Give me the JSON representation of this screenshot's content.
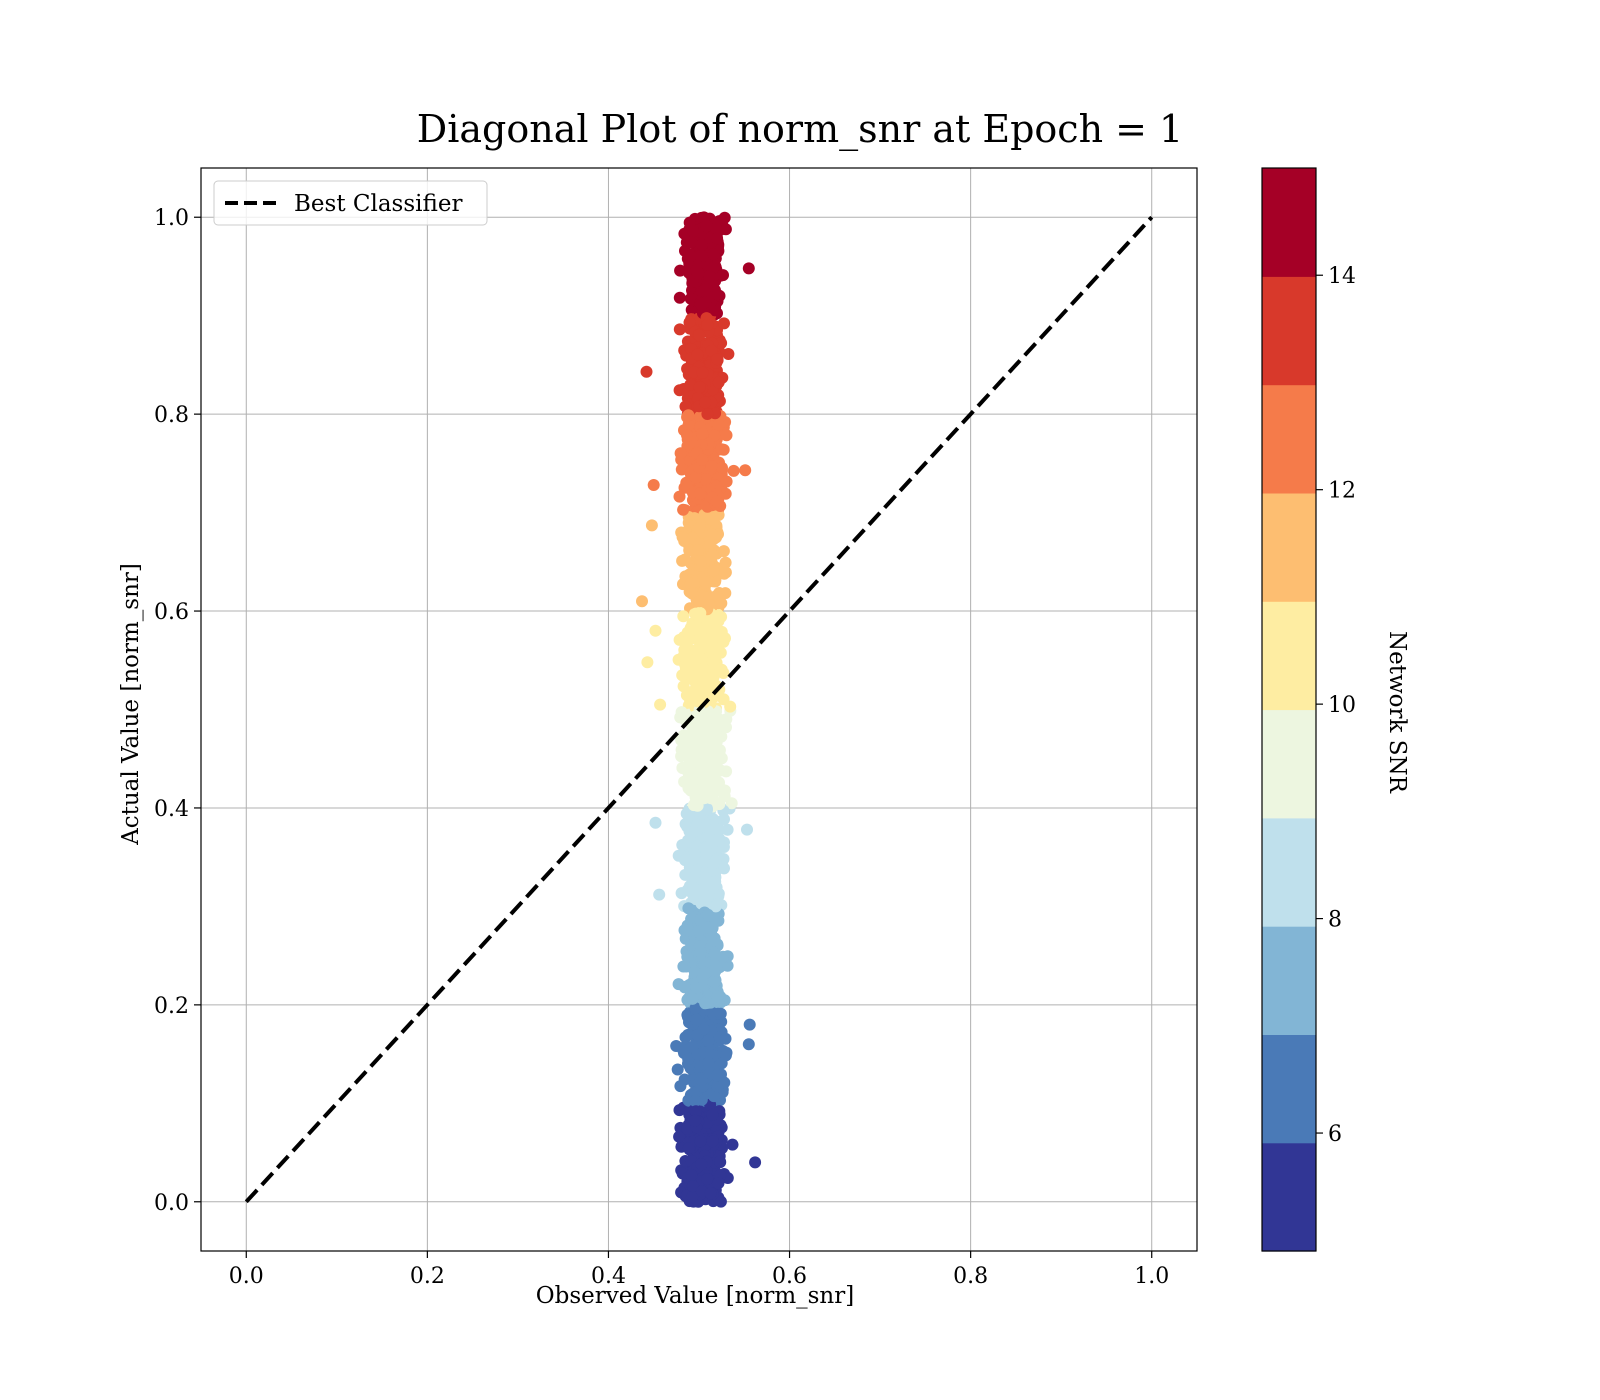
{
  "chart_data": {
    "type": "scatter",
    "title": "Diagonal Plot of norm_snr at Epoch = 1",
    "xlabel": "Observed Value [norm_snr]",
    "ylabel": "Actual Value [norm_snr]",
    "xlim": [
      -0.05,
      1.05
    ],
    "ylim": [
      -0.05,
      1.05
    ],
    "xticks": [
      0.0,
      0.2,
      0.4,
      0.6,
      0.8,
      1.0
    ],
    "yticks": [
      0.0,
      0.2,
      0.4,
      0.6,
      0.8,
      1.0
    ],
    "xtick_labels": [
      "0.0",
      "0.2",
      "0.4",
      "0.6",
      "0.8",
      "1.0"
    ],
    "ytick_labels": [
      "0.0",
      "0.2",
      "0.4",
      "0.6",
      "0.8",
      "1.0"
    ],
    "grid": true,
    "legend": {
      "placement": "upper-left",
      "entries": [
        {
          "label": "Best Classifier",
          "style": "dashed",
          "color": "#000000"
        }
      ]
    },
    "reference_line": {
      "name": "Best Classifier",
      "x": [
        0.0,
        1.0
      ],
      "y": [
        0.0,
        1.0
      ],
      "style": "dashed"
    },
    "point_cloud": {
      "x_center": 0.505,
      "x_spread": 0.035,
      "y_range": [
        0.0,
        1.0
      ],
      "bands": [
        {
          "y_range": [
            0.0,
            0.1
          ],
          "color": "#313695"
        },
        {
          "y_range": [
            0.1,
            0.2
          ],
          "color": "#4a7ab7"
        },
        {
          "y_range": [
            0.2,
            0.3
          ],
          "color": "#82b5d5"
        },
        {
          "y_range": [
            0.3,
            0.4
          ],
          "color": "#bfe0ec"
        },
        {
          "y_range": [
            0.4,
            0.5
          ],
          "color": "#edf6e0"
        },
        {
          "y_range": [
            0.5,
            0.6
          ],
          "color": "#feeda2"
        },
        {
          "y_range": [
            0.6,
            0.7
          ],
          "color": "#fdbe71"
        },
        {
          "y_range": [
            0.7,
            0.8
          ],
          "color": "#f57b4a"
        },
        {
          "y_range": [
            0.8,
            0.9
          ],
          "color": "#d8392b"
        },
        {
          "y_range": [
            0.9,
            1.0
          ],
          "color": "#a50026"
        }
      ],
      "outliers": [
        [
          0.437,
          0.61
        ],
        [
          0.443,
          0.548
        ],
        [
          0.452,
          0.58
        ],
        [
          0.457,
          0.505
        ],
        [
          0.452,
          0.385
        ],
        [
          0.456,
          0.312
        ],
        [
          0.562,
          0.04
        ],
        [
          0.555,
          0.16
        ],
        [
          0.556,
          0.18
        ],
        [
          0.553,
          0.378
        ],
        [
          0.551,
          0.743
        ],
        [
          0.555,
          0.948
        ],
        [
          0.442,
          0.843
        ],
        [
          0.45,
          0.728
        ],
        [
          0.448,
          0.687
        ]
      ]
    },
    "colorbar": {
      "label": "Network SNR",
      "range": [
        4.9,
        15.0
      ],
      "ticks": [
        6,
        8,
        10,
        12,
        14
      ],
      "tick_labels": [
        "6",
        "8",
        "10",
        "12",
        "14"
      ],
      "colors": [
        "#313695",
        "#4a7ab7",
        "#82b5d5",
        "#bfe0ec",
        "#edf6e0",
        "#feeda2",
        "#fdbe71",
        "#f57b4a",
        "#d8392b",
        "#a50026"
      ]
    }
  }
}
